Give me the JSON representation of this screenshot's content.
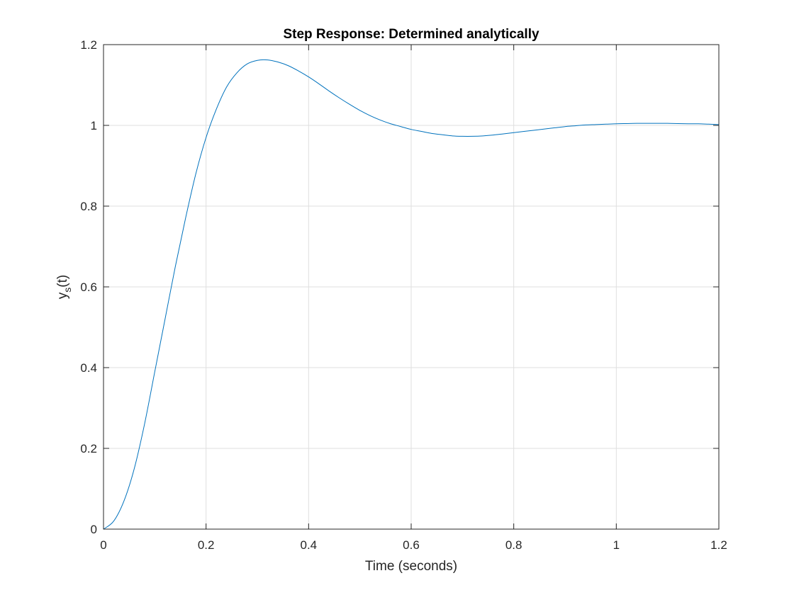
{
  "chart_data": {
    "type": "line",
    "title": "Step Response: Determined analytically",
    "xlabel": "Time (seconds)",
    "ylabel": {
      "base": "y",
      "sub": "s",
      "suffix": "(t)"
    },
    "xlim": [
      0,
      1.2
    ],
    "ylim": [
      0,
      1.2
    ],
    "x_ticks": [
      0,
      0.2,
      0.4,
      0.6,
      0.8,
      1,
      1.2
    ],
    "x_tick_labels": [
      "0",
      "0.2",
      "0.4",
      "0.6",
      "0.8",
      "1",
      "1.2"
    ],
    "y_ticks": [
      0,
      0.2,
      0.4,
      0.6,
      0.8,
      1,
      1.2
    ],
    "y_tick_labels": [
      "0",
      "0.2",
      "0.4",
      "0.6",
      "0.8",
      "1",
      "1.2"
    ],
    "grid": true,
    "legend": "none",
    "series": [
      {
        "color": "#0072bd",
        "x": [
          0,
          0.02,
          0.04,
          0.06,
          0.08,
          0.1,
          0.12,
          0.14,
          0.16,
          0.18,
          0.2,
          0.22,
          0.24,
          0.26,
          0.28,
          0.3,
          0.32,
          0.34,
          0.36,
          0.38,
          0.4,
          0.42,
          0.44,
          0.46,
          0.48,
          0.5,
          0.52,
          0.54,
          0.56,
          0.58,
          0.6,
          0.62,
          0.64,
          0.66,
          0.68,
          0.7,
          0.72,
          0.74,
          0.76,
          0.78,
          0.8,
          0.82,
          0.84,
          0.86,
          0.88,
          0.9,
          0.92,
          0.94,
          0.96,
          0.98,
          1.0,
          1.02,
          1.04,
          1.06,
          1.08,
          1.1,
          1.12,
          1.14,
          1.16,
          1.18,
          1.2
        ],
        "y": [
          0,
          0.02,
          0.07,
          0.15,
          0.26,
          0.39,
          0.52,
          0.65,
          0.77,
          0.88,
          0.97,
          1.04,
          1.095,
          1.13,
          1.152,
          1.161,
          1.162,
          1.157,
          1.148,
          1.135,
          1.12,
          1.103,
          1.085,
          1.068,
          1.052,
          1.037,
          1.024,
          1.013,
          1.004,
          0.997,
          0.99,
          0.985,
          0.98,
          0.977,
          0.974,
          0.973,
          0.973,
          0.974,
          0.976,
          0.979,
          0.982,
          0.985,
          0.988,
          0.991,
          0.994,
          0.997,
          0.999,
          1.001,
          1.002,
          1.003,
          1.004,
          1.0045,
          1.005,
          1.005,
          1.005,
          1.005,
          1.0045,
          1.004,
          1.004,
          1.003,
          1.002
        ]
      }
    ]
  }
}
